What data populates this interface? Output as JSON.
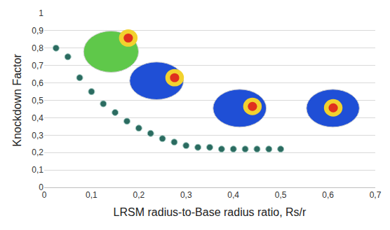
{
  "chart_data": {
    "type": "scatter",
    "x_label": "LRSM radius-to-Base radius ratio, Rs/r",
    "y_label": "Knockdown Factor",
    "x": [
      0.025,
      0.05,
      0.075,
      0.1,
      0.125,
      0.15,
      0.175,
      0.2,
      0.225,
      0.25,
      0.275,
      0.3,
      0.325,
      0.35,
      0.375,
      0.4,
      0.425,
      0.45,
      0.475,
      0.5
    ],
    "values": [
      0.8,
      0.75,
      0.63,
      0.55,
      0.48,
      0.43,
      0.38,
      0.34,
      0.31,
      0.28,
      0.26,
      0.24,
      0.23,
      0.23,
      0.22,
      0.22,
      0.22,
      0.22,
      0.22,
      0.22
    ],
    "color": "#2b6b60",
    "marker": "circle",
    "xlim": [
      0,
      0.7
    ],
    "xticks": [
      0,
      {
        "value": 0.1,
        "label": "0,1"
      },
      {
        "value": 0.2,
        "label": "0,2"
      },
      {
        "value": 0.3,
        "label": "0,3"
      },
      {
        "value": 0.4,
        "label": "0,4"
      },
      {
        "value": 0.5,
        "label": "0,5"
      },
      {
        "value": 0.6,
        "label": "0,6"
      },
      {
        "value": 0.7,
        "label": "0,7"
      }
    ],
    "ylim": [
      0,
      1
    ],
    "yticks": [
      0,
      {
        "value": 0.1,
        "label": "0,1"
      },
      {
        "value": 0.2,
        "label": "0,2"
      },
      {
        "value": 0.3,
        "label": "0,3"
      },
      {
        "value": 0.4,
        "label": "0,4"
      },
      {
        "value": 0.5,
        "label": "0,5"
      },
      {
        "value": 0.6,
        "label": "0,6"
      },
      {
        "value": 0.7,
        "label": "0,7"
      },
      {
        "value": 0.8,
        "label": "0,8"
      },
      {
        "value": 0.9,
        "label": "0,9"
      },
      1
    ],
    "grid": true
  }
}
